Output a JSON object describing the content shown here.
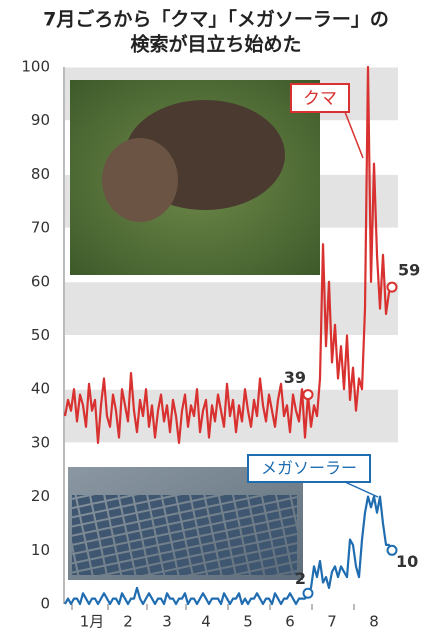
{
  "chart_data": {
    "type": "line",
    "title": [
      "7月ごろから「クマ」「メガソーラー」の",
      "検索が目立ち始めた"
    ],
    "categories": [
      null,
      null,
      null,
      null,
      null,
      null,
      null,
      null,
      null,
      "1月",
      null,
      null,
      null,
      null,
      null,
      null,
      null,
      null,
      null,
      null,
      null,
      "2",
      null,
      null,
      null,
      null,
      null,
      null,
      null,
      null,
      null,
      null,
      null,
      null,
      "3",
      null,
      null,
      null,
      null,
      null,
      null,
      null,
      null,
      null,
      null,
      null,
      null,
      "4",
      null,
      null,
      null,
      null,
      null,
      null,
      null,
      null,
      null,
      null,
      null,
      null,
      null,
      "5",
      null,
      null,
      null,
      null,
      null,
      null,
      null,
      null,
      null,
      null,
      null,
      null,
      null,
      "6",
      null,
      null,
      null,
      null,
      null,
      null,
      null,
      null,
      null,
      null,
      null,
      null,
      null,
      "7",
      null,
      null,
      null,
      null,
      null,
      null,
      null,
      null,
      null,
      null,
      null,
      null,
      null,
      "8",
      null,
      null,
      null,
      null,
      null,
      null
    ],
    "series": [
      {
        "name": "クマ",
        "color": "#d8312f",
        "values": [
          35,
          38,
          36,
          40,
          34,
          39,
          37,
          33,
          41,
          36,
          38,
          30,
          37,
          42,
          35,
          33,
          39,
          36,
          31,
          40,
          37,
          34,
          43,
          36,
          32,
          38,
          35,
          40,
          33,
          37,
          31,
          36,
          39,
          34,
          37,
          32,
          38,
          35,
          30,
          36,
          39,
          33,
          37,
          35,
          40,
          32,
          36,
          38,
          31,
          37,
          34,
          39,
          36,
          33,
          41,
          35,
          38,
          32,
          37,
          34,
          40,
          36,
          33,
          38,
          35,
          42,
          37,
          34,
          39,
          36,
          33,
          38,
          41,
          35,
          37,
          32,
          39,
          36,
          34,
          40,
          31,
          39,
          33,
          37,
          35,
          42,
          67,
          48,
          60,
          45,
          52,
          42,
          48,
          40,
          50,
          38,
          44,
          36,
          42,
          40,
          55,
          100,
          60,
          82,
          65,
          55,
          65,
          54,
          58,
          59
        ]
      },
      {
        "name": "メガソーラー",
        "color": "#1f6db0",
        "values": [
          0,
          1,
          0,
          1,
          1,
          0,
          2,
          1,
          0,
          1,
          1,
          0,
          1,
          2,
          1,
          0,
          1,
          1,
          0,
          2,
          1,
          0,
          1,
          1,
          3,
          1,
          0,
          1,
          2,
          1,
          0,
          1,
          1,
          0,
          2,
          1,
          1,
          0,
          1,
          1,
          2,
          0,
          1,
          1,
          0,
          1,
          2,
          1,
          0,
          1,
          1,
          1,
          0,
          2,
          1,
          0,
          1,
          1,
          2,
          0,
          1,
          0,
          1,
          1,
          2,
          1,
          0,
          1,
          1,
          0,
          2,
          1,
          0,
          1,
          1,
          2,
          1,
          0,
          1,
          1,
          1,
          2,
          3,
          7,
          5,
          8,
          4,
          5,
          3,
          6,
          7,
          5,
          7,
          6,
          5,
          12,
          11,
          7,
          5,
          12,
          17,
          20,
          18,
          20,
          17,
          20,
          15,
          11,
          11,
          10
        ]
      }
    ],
    "ylim": [
      0,
      100
    ],
    "yticks": [
      0,
      10,
      20,
      30,
      40,
      50,
      60,
      70,
      80,
      90,
      100
    ],
    "grid": true
  }
}
